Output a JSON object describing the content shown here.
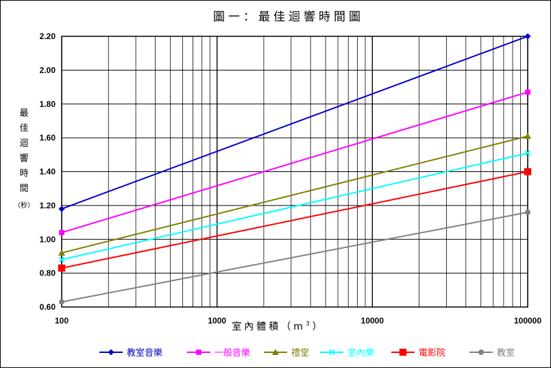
{
  "chart_data": {
    "type": "line",
    "title": "圖一：最佳迴響時間圖",
    "xlabel": "室內體積（m",
    "xlabel_sup": "3",
    "xlabel_close": "）",
    "ylabel_chars": [
      "最",
      "佳",
      "迴",
      "響",
      "時",
      "間"
    ],
    "ylabel_unit": "（秒）",
    "x_scale": "log",
    "xlim": [
      100,
      100000
    ],
    "ylim": [
      0.6,
      2.2
    ],
    "x_ticks": [
      100,
      1000,
      10000,
      100000
    ],
    "x_tick_labels": [
      "100",
      "1000",
      "10000",
      "100000"
    ],
    "y_ticks": [
      0.6,
      0.8,
      1.0,
      1.2,
      1.4,
      1.6,
      1.8,
      2.0,
      2.2
    ],
    "y_tick_labels": [
      "0.60",
      "0.80",
      "1.00",
      "1.20",
      "1.40",
      "1.60",
      "1.80",
      "2.00",
      "2.20"
    ],
    "grid": true,
    "legend_position": "bottom",
    "x": [
      100,
      100000
    ],
    "series": [
      {
        "name": "教室音樂",
        "values": [
          1.18,
          2.2
        ],
        "color": "#0000cc",
        "marker": "diamond"
      },
      {
        "name": "一般音樂",
        "values": [
          1.04,
          1.87
        ],
        "color": "#ff00ff",
        "marker": "square"
      },
      {
        "name": "禮堂",
        "values": [
          0.92,
          1.61
        ],
        "color": "#808000",
        "marker": "triangle"
      },
      {
        "name": "室內樂",
        "values": [
          0.88,
          1.51
        ],
        "color": "#00ffff",
        "marker": "x"
      },
      {
        "name": "電影院",
        "values": [
          0.83,
          1.4
        ],
        "color": "#ff0000",
        "marker": "big-square"
      },
      {
        "name": "教室",
        "values": [
          0.63,
          1.16
        ],
        "color": "#808080",
        "marker": "circle"
      }
    ]
  }
}
